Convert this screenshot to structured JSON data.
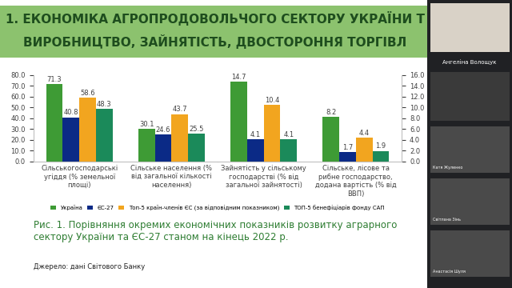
{
  "header": {
    "title_lines": [
      "1. ЕКОНОМІКА АГРОПРОДОВОЛЬЧОГО СЕКТОРУ УКРАЇНИ Т",
      "ВИРОБНИЦТВО, ЗАЙНЯТІСТЬ, ДВОСТОРОННЯ ТОРГІВЛ"
    ]
  },
  "participants": [
    "Ангеліна Волощук",
    "Катя Жуленко",
    "Світлана Зінь",
    "Анастасія Шуля"
  ],
  "caption": "Рис. 1. Порівняння окремих економічних показників розвитку аграрного сектору України та ЄС-27 станом на кінець 2022 р.",
  "source": "Джерело: дані Світового Банку",
  "chart_data": [
    {
      "type": "bar",
      "categories": [
        "Сільськогосподарські угіддя (% земельної площі)",
        "Сільське населення (% від загальної кількості населення)"
      ],
      "series": [
        {
          "name": "Україна",
          "color": "#3e9b35",
          "values": [
            71.3,
            30.1
          ]
        },
        {
          "name": "ЄС-27",
          "color": "#0b2a86",
          "values": [
            40.8,
            24.6
          ]
        },
        {
          "name": "Топ-5 країн-членів ЄС (за відповідним показником)",
          "color": "#f2a51f",
          "values": [
            58.6,
            43.7
          ]
        },
        {
          "name": "ТОП-5 бенефіціарів фонду САП",
          "color": "#1b8a5a",
          "values": [
            48.3,
            25.5
          ]
        }
      ],
      "ylim": [
        0,
        80
      ],
      "yticks": [
        {
          "value": 0,
          "label": "0.0"
        },
        {
          "value": 10,
          "label": "10.0"
        },
        {
          "value": 20,
          "label": "20.0"
        },
        {
          "value": 30,
          "label": "30.0"
        },
        {
          "value": 40,
          "label": "40.0"
        },
        {
          "value": 50,
          "label": "50.0"
        },
        {
          "value": 60,
          "label": "60.0"
        },
        {
          "value": 70,
          "label": "70.0"
        },
        {
          "value": 80,
          "label": "80.0"
        }
      ],
      "grid": false,
      "data_labels": true,
      "legend": "upper center"
    },
    {
      "type": "bar",
      "categories": [
        "Зайнятість у сільському господарстві (% від загальної зайнятості)",
        "Сільське, лісове та рибне господарство, додана вартість (% від ВВП)"
      ],
      "series": [
        {
          "name": "Україна",
          "color": "#3e9b35",
          "values": [
            14.7,
            8.2
          ]
        },
        {
          "name": "ЄС-27",
          "color": "#0b2a86",
          "values": [
            4.1,
            1.7
          ]
        },
        {
          "name": "Топ-5 країн-членів ЄС (за відповідним показником)",
          "color": "#f2a51f",
          "values": [
            10.4,
            4.4
          ]
        },
        {
          "name": "ТОП-5 бенефіціарів фонду САП",
          "color": "#1b8a5a",
          "values": [
            4.1,
            1.9
          ]
        }
      ],
      "ylim": [
        0,
        16
      ],
      "yticks": [
        {
          "value": 0,
          "label": "0.0"
        },
        {
          "value": 2,
          "label": "2.0"
        },
        {
          "value": 4,
          "label": "4.0"
        },
        {
          "value": 6,
          "label": "6.0"
        },
        {
          "value": 8,
          "label": "8.0"
        },
        {
          "value": 10,
          "label": "10.0"
        },
        {
          "value": 12,
          "label": "12.0"
        },
        {
          "value": 14,
          "label": "14.0"
        },
        {
          "value": 16,
          "label": "16.0"
        }
      ],
      "grid": false,
      "data_labels": true
    }
  ]
}
